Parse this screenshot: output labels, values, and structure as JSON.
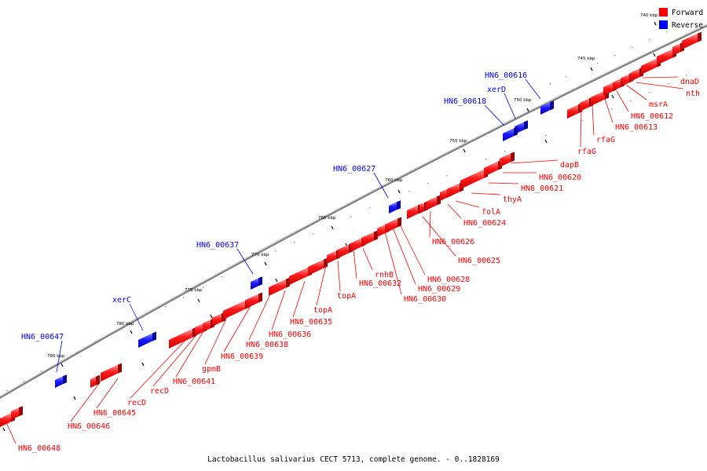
{
  "legend": [
    {
      "label": "Forward",
      "color": "#ff0000"
    },
    {
      "label": "Reverse",
      "color": "#0000ff"
    }
  ],
  "caption": "Lactobacillus salivarius CECT 5713, complete genome. - 0..1828169",
  "colors": {
    "forward": "#ff0000",
    "reverse": "#0000ff",
    "backbone": "#808080"
  },
  "position_labels": [
    "740 kbp",
    "745 kbp",
    "750 kbp",
    "755 kbp",
    "760 kbp",
    "765 kbp",
    "770 kbp",
    "775 kbp",
    "780 kbp",
    "785 kbp"
  ],
  "forward_genes": [
    {
      "name": "dnaD"
    },
    {
      "name": "nth"
    },
    {
      "name": "msrA"
    },
    {
      "name": "HN6_00612"
    },
    {
      "name": "HN6_00613"
    },
    {
      "name": "rfaG"
    },
    {
      "name": "rfaG"
    },
    {
      "name": "dapB"
    },
    {
      "name": "HN6_00620"
    },
    {
      "name": "HN6_00621"
    },
    {
      "name": "thyA"
    },
    {
      "name": "folA"
    },
    {
      "name": "HN6_00624"
    },
    {
      "name": "HN6_00626"
    },
    {
      "name": "HN6_00625"
    },
    {
      "name": "HN6_00628"
    },
    {
      "name": "HN6_00629"
    },
    {
      "name": "HN6_00630"
    },
    {
      "name": "rnhB"
    },
    {
      "name": "HN6_00632"
    },
    {
      "name": "topA"
    },
    {
      "name": "topA"
    },
    {
      "name": "HN6_00635"
    },
    {
      "name": "HN6_00636"
    },
    {
      "name": "HN6_00638"
    },
    {
      "name": "HN6_00639"
    },
    {
      "name": "gpmB"
    },
    {
      "name": "HN6_00641"
    },
    {
      "name": "recD"
    },
    {
      "name": "recD"
    },
    {
      "name": "HN6_00645"
    },
    {
      "name": "HN6_00646"
    },
    {
      "name": "HN6_00648"
    }
  ],
  "reverse_genes": [
    {
      "name": "HN6_00616"
    },
    {
      "name": "xerD"
    },
    {
      "name": "HN6_00618"
    },
    {
      "name": "HN6_00627"
    },
    {
      "name": "HN6_00637"
    },
    {
      "name": "xerC"
    },
    {
      "name": "HN6_00647"
    }
  ]
}
